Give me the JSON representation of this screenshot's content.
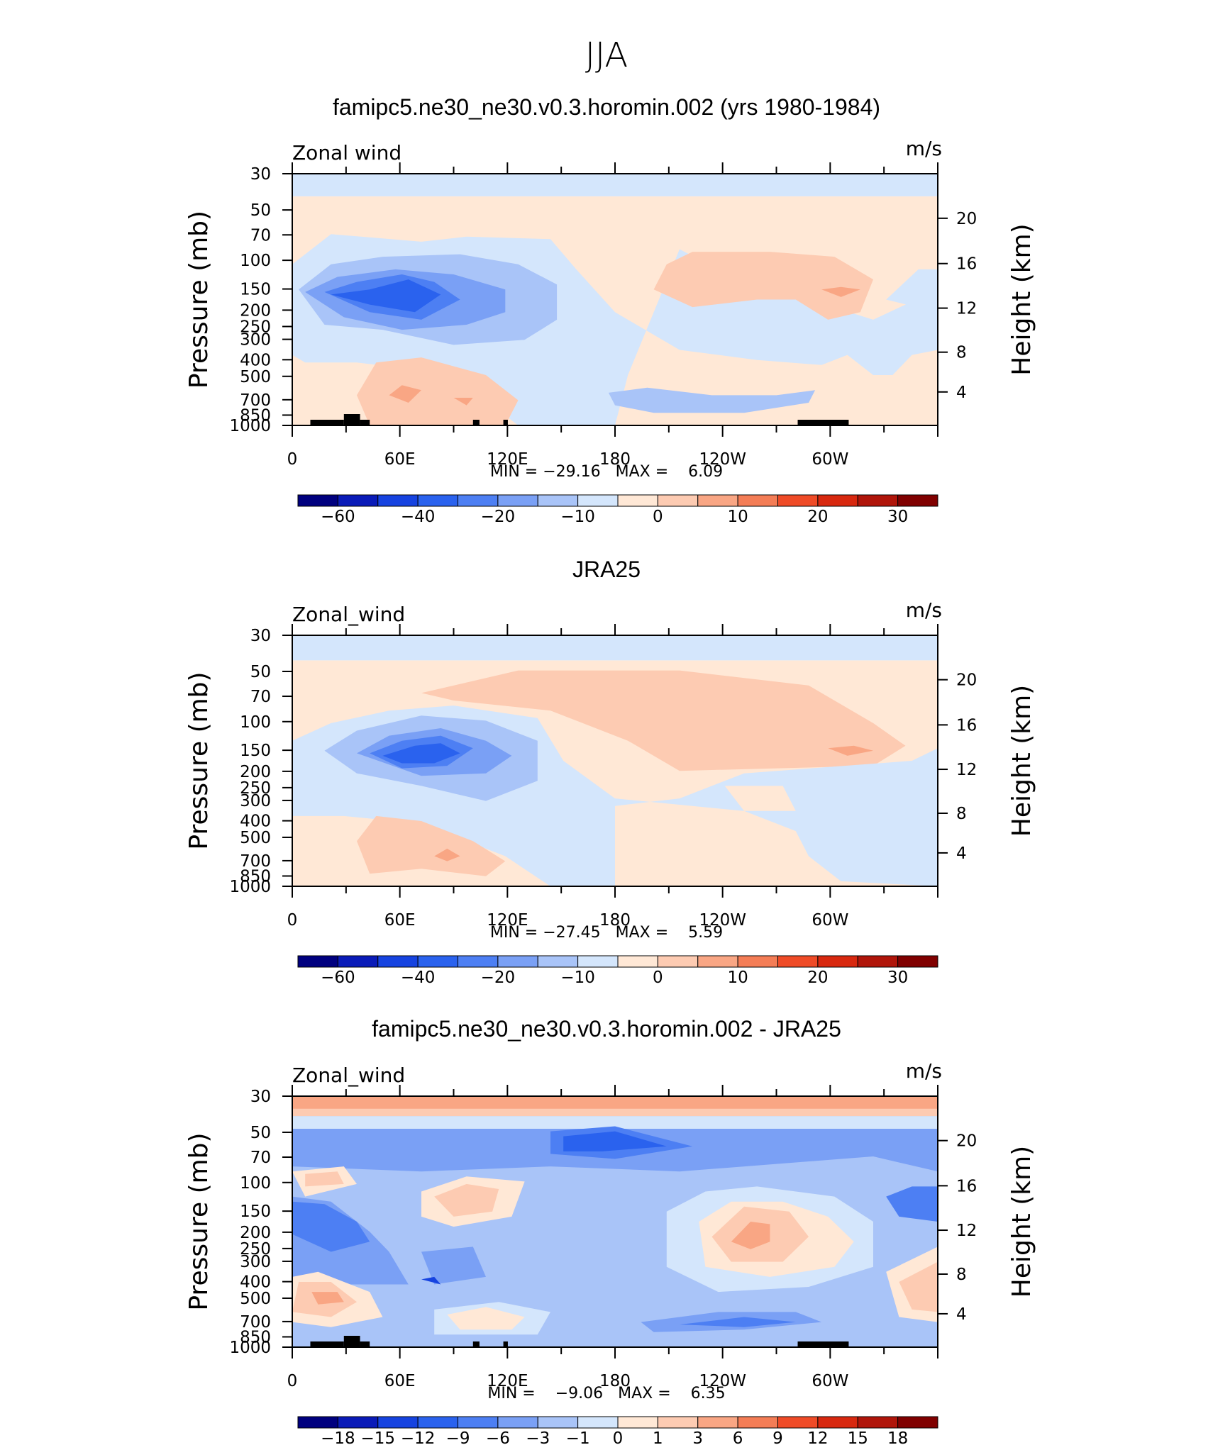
{
  "figure": {
    "title": "JJA"
  },
  "chart_data": [
    {
      "type": "contour",
      "title": "famipc5.ne30_ne30.v0.3.horomin.002 (yrs 1980-1984)",
      "left_label": "Zonal wind",
      "units_label": "m/s",
      "ylabel": "Pressure (mb)",
      "ylabel_right": "Height (km)",
      "pressure_ticks": [
        "30",
        "50",
        "70",
        "100",
        "150",
        "200",
        "250",
        "300",
        "400",
        "500",
        "700",
        "850",
        "1000"
      ],
      "height_ticks": [
        "20",
        "16",
        "12",
        "8",
        "4"
      ],
      "x_ticks": [
        "0",
        "60E",
        "120E",
        "180",
        "120W",
        "60W"
      ],
      "stats": "MIN = −29.16   MAX =    6.09",
      "colorbar": {
        "labels": [
          "−60",
          "−40",
          "−20",
          "−10",
          "0",
          "10",
          "20",
          "30"
        ],
        "colors": [
          "#00007f",
          "#0a1bb8",
          "#1643e0",
          "#2a62ee",
          "#4d7ff3",
          "#7aa0f5",
          "#a9c4f8",
          "#d4e6fc",
          "#ffe8d6",
          "#fdcbb2",
          "#f9a684",
          "#f47d56",
          "#ef4b27",
          "#d8280f",
          "#b0150a",
          "#800000"
        ]
      },
      "orography": true
    },
    {
      "type": "contour",
      "title": "JRA25",
      "left_label": "Zonal_wind",
      "units_label": "m/s",
      "ylabel": "Pressure (mb)",
      "ylabel_right": "Height (km)",
      "pressure_ticks": [
        "30",
        "50",
        "70",
        "100",
        "150",
        "200",
        "250",
        "300",
        "400",
        "500",
        "700",
        "850",
        "1000"
      ],
      "height_ticks": [
        "20",
        "16",
        "12",
        "8",
        "4"
      ],
      "x_ticks": [
        "0",
        "60E",
        "120E",
        "180",
        "120W",
        "60W"
      ],
      "stats": "MIN = −27.45   MAX =    5.59",
      "colorbar": {
        "labels": [
          "−60",
          "−40",
          "−20",
          "−10",
          "0",
          "10",
          "20",
          "30"
        ],
        "colors": [
          "#00007f",
          "#0a1bb8",
          "#1643e0",
          "#2a62ee",
          "#4d7ff3",
          "#7aa0f5",
          "#a9c4f8",
          "#d4e6fc",
          "#ffe8d6",
          "#fdcbb2",
          "#f9a684",
          "#f47d56",
          "#ef4b27",
          "#d8280f",
          "#b0150a",
          "#800000"
        ]
      },
      "orography": false
    },
    {
      "type": "contour",
      "title": "famipc5.ne30_ne30.v0.3.horomin.002 - JRA25",
      "left_label": "Zonal_wind",
      "units_label": "m/s",
      "ylabel": "Pressure (mb)",
      "ylabel_right": "Height (km)",
      "pressure_ticks": [
        "30",
        "50",
        "70",
        "100",
        "150",
        "200",
        "250",
        "300",
        "400",
        "500",
        "700",
        "850",
        "1000"
      ],
      "height_ticks": [
        "20",
        "16",
        "12",
        "8",
        "4"
      ],
      "x_ticks": [
        "0",
        "60E",
        "120E",
        "180",
        "120W",
        "60W"
      ],
      "stats": "MIN =    −9.06   MAX =    6.35",
      "colorbar": {
        "labels": [
          "−18",
          "−15",
          "−12",
          "−9",
          "−6",
          "−3",
          "−1",
          "0",
          "1",
          "3",
          "6",
          "9",
          "12",
          "15",
          "18"
        ],
        "colors": [
          "#00007f",
          "#0a1bb8",
          "#1643e0",
          "#2a62ee",
          "#4d7ff3",
          "#7aa0f5",
          "#a9c4f8",
          "#d4e6fc",
          "#ffe8d6",
          "#fdcbb2",
          "#f9a684",
          "#f47d56",
          "#ef4b27",
          "#d8280f",
          "#b0150a",
          "#800000"
        ]
      },
      "orography": true
    }
  ]
}
